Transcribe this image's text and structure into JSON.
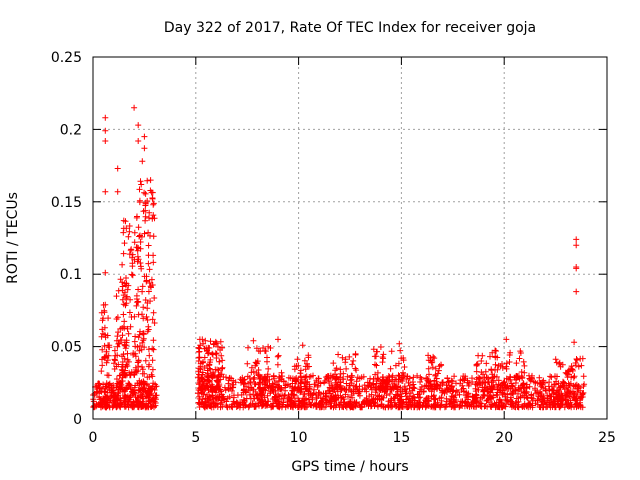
{
  "chart_data": {
    "type": "scatter",
    "title": "Day 322 of 2017, Rate Of TEC Index for receiver goja",
    "xlabel": "GPS time / hours",
    "ylabel": "ROTI / TECUs",
    "xlim": [
      0,
      25
    ],
    "ylim": [
      0,
      0.25
    ],
    "xticks": [
      "0",
      "5",
      "10",
      "15",
      "20",
      "25"
    ],
    "yticks": [
      "0",
      "0.05",
      "0.1",
      "0.15",
      "0.2",
      "0.25"
    ],
    "grid": true,
    "marker": "+",
    "color": "#ff0000",
    "highlights": [
      {
        "x": 0.6,
        "y": 0.208
      },
      {
        "x": 0.6,
        "y": 0.199
      },
      {
        "x": 0.6,
        "y": 0.192
      },
      {
        "x": 2.0,
        "y": 0.215
      },
      {
        "x": 2.2,
        "y": 0.203
      },
      {
        "x": 2.2,
        "y": 0.192
      },
      {
        "x": 2.5,
        "y": 0.195
      },
      {
        "x": 2.5,
        "y": 0.187
      },
      {
        "x": 1.2,
        "y": 0.173
      },
      {
        "x": 0.6,
        "y": 0.157
      },
      {
        "x": 1.2,
        "y": 0.157
      },
      {
        "x": 2.4,
        "y": 0.178
      },
      {
        "x": 2.8,
        "y": 0.165
      },
      {
        "x": 2.9,
        "y": 0.152
      },
      {
        "x": 0.6,
        "y": 0.101
      },
      {
        "x": 23.5,
        "y": 0.124
      },
      {
        "x": 23.5,
        "y": 0.12
      },
      {
        "x": 23.5,
        "y": 0.105
      },
      {
        "x": 23.5,
        "y": 0.104
      },
      {
        "x": 23.5,
        "y": 0.088
      },
      {
        "x": 23.4,
        "y": 0.053
      },
      {
        "x": 20.1,
        "y": 0.055
      },
      {
        "x": 9.0,
        "y": 0.055
      },
      {
        "x": 5.2,
        "y": 0.055
      },
      {
        "x": 10.2,
        "y": 0.051
      },
      {
        "x": 14.9,
        "y": 0.052
      },
      {
        "x": 7.8,
        "y": 0.054
      }
    ],
    "clusters": [
      {
        "x_range": [
          0.0,
          3.1
        ],
        "y_range": [
          0.008,
          0.025
        ],
        "count": 320
      },
      {
        "x_range": [
          0.4,
          0.8
        ],
        "y_range": [
          0.03,
          0.08
        ],
        "count": 35
      },
      {
        "x_range": [
          1.0,
          1.5
        ],
        "y_range": [
          0.025,
          0.1
        ],
        "count": 40
      },
      {
        "x_range": [
          1.4,
          2.2
        ],
        "y_range": [
          0.03,
          0.14
        ],
        "count": 110
      },
      {
        "x_range": [
          2.2,
          3.0
        ],
        "y_range": [
          0.02,
          0.165
        ],
        "count": 130
      },
      {
        "x_range": [
          5.1,
          23.9
        ],
        "y_range": [
          0.008,
          0.03
        ],
        "count": 1500
      },
      {
        "x_range": [
          5.1,
          6.3
        ],
        "y_range": [
          0.02,
          0.055
        ],
        "count": 120
      },
      {
        "x_range": [
          7.5,
          9.2
        ],
        "y_range": [
          0.02,
          0.05
        ],
        "count": 60
      },
      {
        "x_range": [
          9.8,
          10.6
        ],
        "y_range": [
          0.02,
          0.045
        ],
        "count": 35
      },
      {
        "x_range": [
          11.6,
          12.8
        ],
        "y_range": [
          0.02,
          0.045
        ],
        "count": 40
      },
      {
        "x_range": [
          13.6,
          15.2
        ],
        "y_range": [
          0.02,
          0.05
        ],
        "count": 70
      },
      {
        "x_range": [
          16.3,
          17.0
        ],
        "y_range": [
          0.02,
          0.045
        ],
        "count": 30
      },
      {
        "x_range": [
          18.6,
          21.0
        ],
        "y_range": [
          0.02,
          0.048
        ],
        "count": 90
      },
      {
        "x_range": [
          22.5,
          23.9
        ],
        "y_range": [
          0.015,
          0.042
        ],
        "count": 60
      }
    ]
  }
}
